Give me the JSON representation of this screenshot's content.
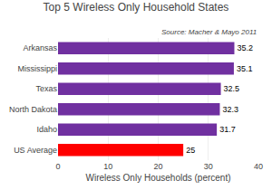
{
  "chart_data": {
    "type": "bar",
    "orientation": "horizontal",
    "title": "Top 5 Wireless Only Household States",
    "annotations": [
      "Source: Macher & Mayo 2011"
    ],
    "xlabel": "Wireless Only Households (percent)",
    "categories": [
      "US Average",
      "Idaho",
      "North Dakota",
      "Texas",
      "Mississippi",
      "Arkansas"
    ],
    "values": [
      25,
      31.7,
      32.3,
      32.5,
      35.1,
      35.2
    ],
    "colors": [
      "#ff0000",
      "#7030a0",
      "#7030a0",
      "#7030a0",
      "#7030a0",
      "#7030a0"
    ],
    "xlim": [
      0,
      40
    ],
    "xticks": [
      0,
      10,
      20,
      30,
      40
    ],
    "grid": true,
    "data_labels": true
  }
}
